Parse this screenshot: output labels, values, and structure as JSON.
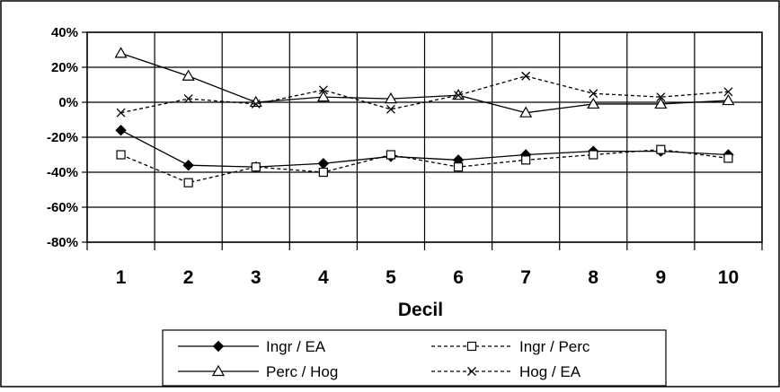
{
  "chart_data": {
    "type": "line",
    "title": "",
    "xlabel": "Decil",
    "ylabel": "",
    "categories": [
      "1",
      "2",
      "3",
      "4",
      "5",
      "6",
      "7",
      "8",
      "9",
      "10"
    ],
    "ylim": [
      -80,
      40
    ],
    "ytick_values": [
      40,
      20,
      0,
      -20,
      -40,
      -60,
      -80
    ],
    "ytick_labels": [
      "40%",
      "20%",
      "0%",
      "-20%",
      "-40%",
      "-60%",
      "-80%"
    ],
    "grid": "on",
    "legend_position": "bottom",
    "series": [
      {
        "name": "Ingr / EA",
        "values": [
          -16,
          -36,
          -37,
          -35,
          -31,
          -33,
          -30,
          -28,
          -28,
          -30
        ],
        "line": "solid",
        "marker": "diamond-filled"
      },
      {
        "name": "Ingr / Perc",
        "values": [
          -30,
          -46,
          -37,
          -40,
          -30,
          -37,
          -33,
          -30,
          -27,
          -32
        ],
        "line": "dashed",
        "marker": "square-open"
      },
      {
        "name": "Perc / Hog",
        "values": [
          28,
          15,
          0,
          3,
          2,
          4,
          -6,
          -1,
          -1,
          1
        ],
        "line": "solid",
        "marker": "triangle-open"
      },
      {
        "name": "Hog / EA",
        "values": [
          -6,
          2,
          -1,
          7,
          -4,
          4,
          15,
          5,
          3,
          6
        ],
        "line": "dashed",
        "marker": "x"
      }
    ]
  }
}
